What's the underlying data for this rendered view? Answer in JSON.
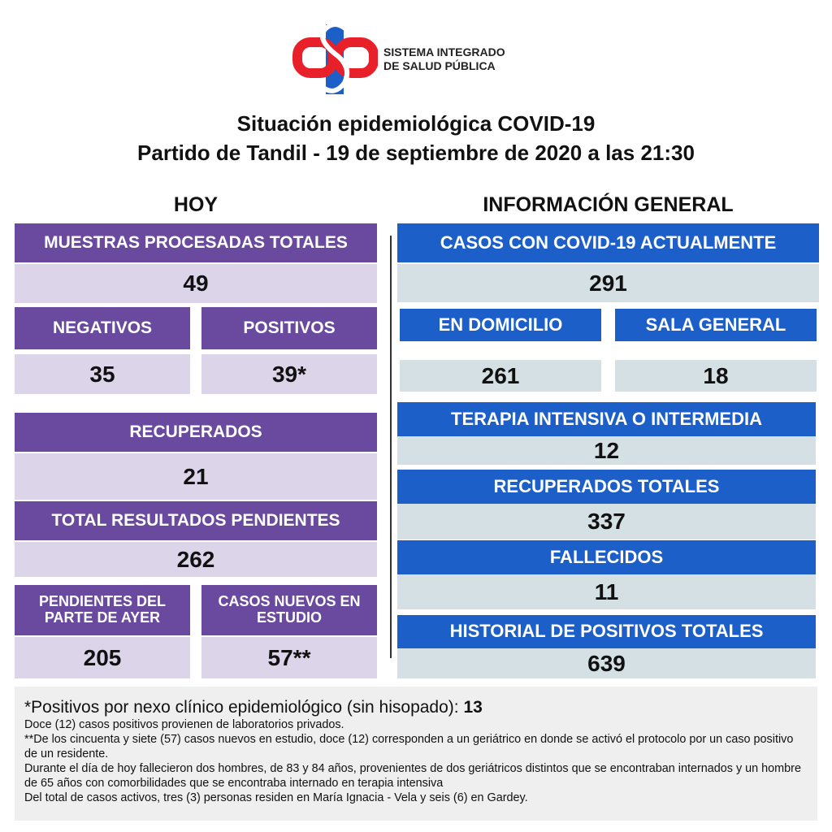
{
  "header": {
    "org_line1": "SISTEMA INTEGRADO",
    "org_line2": "DE SALUD PÚBLICA",
    "title": "Situación epidemiológica COVID-19",
    "subtitle": "Partido de Tandil - 19 de septiembre de 2020 a las 21:30"
  },
  "hoy": {
    "heading": "HOY",
    "cards": [
      {
        "label": "MUESTRAS PROCESADAS TOTALES",
        "value": "49"
      },
      {
        "label": "NEGATIVOS",
        "value": "35"
      },
      {
        "label": "POSITIVOS",
        "value": "39*"
      },
      {
        "label": "RECUPERADOS",
        "value": "21"
      },
      {
        "label": "TOTAL RESULTADOS PENDIENTES",
        "value": "262"
      },
      {
        "label": "PENDIENTES DEL PARTE DE  AYER",
        "value": "205"
      },
      {
        "label": "CASOS NUEVOS EN ESTUDIO",
        "value": "57**"
      }
    ]
  },
  "general": {
    "heading": "INFORMACIÓN GENERAL",
    "cards": [
      {
        "label": "CASOS CON COVID-19 ACTUALMENTE",
        "value": "291"
      },
      {
        "label": "EN DOMICILIO",
        "value": "261"
      },
      {
        "label": "SALA GENERAL",
        "value": "18"
      },
      {
        "label": "TERAPIA INTENSIVA O INTERMEDIA",
        "value": "12"
      },
      {
        "label": "RECUPERADOS TOTALES",
        "value": "337"
      },
      {
        "label": "FALLECIDOS",
        "value": "11"
      },
      {
        "label": "HISTORIAL DE POSITIVOS TOTALES",
        "value": "639"
      }
    ]
  },
  "notes": {
    "positivos_label": "*Positivos por nexo clínico epidemiológico (sin hisopado):",
    "positivos_value": "13",
    "lines": [
      "Doce (12) casos positivos provienen de laboratorios privados.",
      "**De los cincuenta y siete (57) casos nuevos en estudio, doce (12) corresponden a un geriátrico en donde se activó el protocolo por un caso positivo de un residente.",
      "Durante el día de hoy fallecieron dos hombres, de 83 y 84 años, provenientes de dos geriátricos distintos que se encontraban internados y un hombre de 65 años con comorbilidades que se encontraba internado en terapia intensiva",
      "Del total de casos activos, tres (3) personas residen en María Ignacia - Vela y seis (6) en Gardey."
    ]
  }
}
